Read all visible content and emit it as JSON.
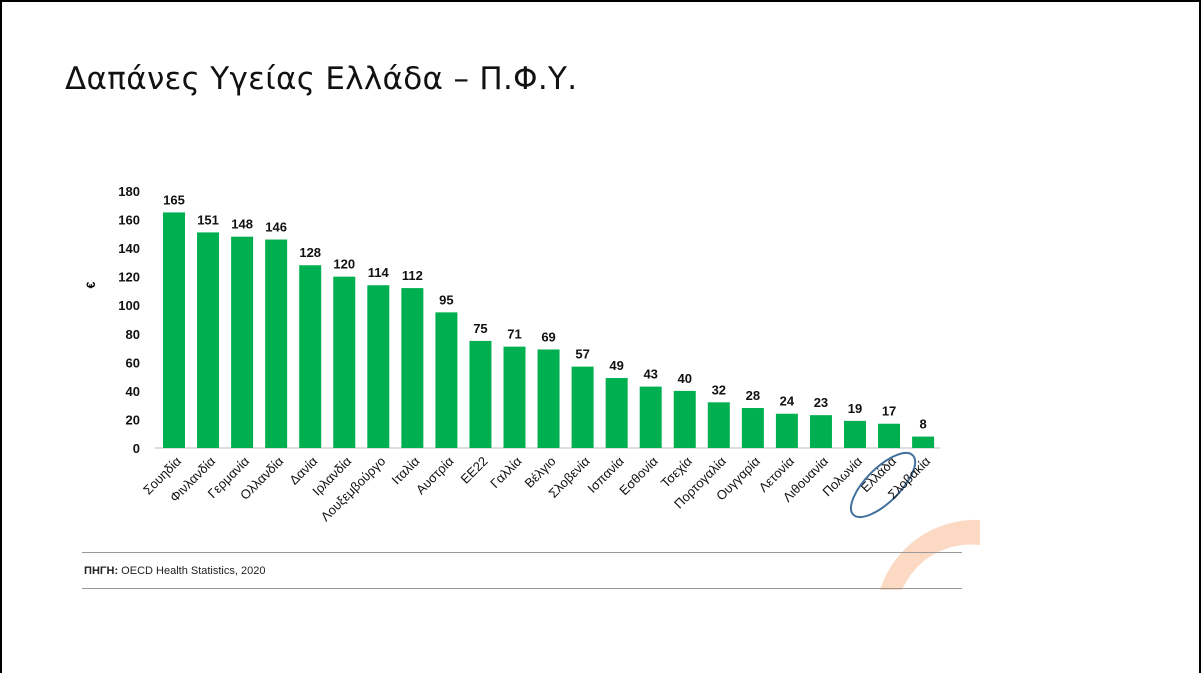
{
  "slide": {
    "title": "Δαπάνες Υγείας Ελλάδα – Π.Φ.Υ."
  },
  "source": {
    "label": "ΠΗΓΗ:",
    "text": "OECD Health Statistics, 2020"
  },
  "colors": {
    "bar": "#00b050",
    "highlight": "#41719c",
    "accent_arc": "#fbd9c3"
  },
  "chart_data": {
    "type": "bar",
    "title": "",
    "xlabel": "",
    "ylabel": "€",
    "ylim": [
      0,
      180
    ],
    "yticks": [
      0,
      20,
      40,
      60,
      80,
      100,
      120,
      140,
      160,
      180
    ],
    "categories": [
      "Σουηδία",
      "Φινλανδία",
      "Γερμανία",
      "Ολλανδία",
      "Δανία",
      "Ιρλανδία",
      "Λουξεμβούργο",
      "Ιταλία",
      "Αυστρία",
      "ΕΕ22",
      "Γαλλία",
      "Βέλγιο",
      "Σλοβενία",
      "Ισπανία",
      "Εσθονία",
      "Τσεχία",
      "Πορτογαλία",
      "Ουγγαρία",
      "Λετονία",
      "Λιθουανία",
      "Πολωνία",
      "Ελλάδα",
      "Σλοβακία"
    ],
    "values": [
      165,
      151,
      148,
      146,
      128,
      120,
      114,
      112,
      95,
      75,
      71,
      69,
      57,
      49,
      43,
      40,
      32,
      28,
      24,
      23,
      19,
      17,
      8
    ],
    "highlighted_category": "Ελλάδα",
    "grid": false,
    "legend": "none"
  }
}
